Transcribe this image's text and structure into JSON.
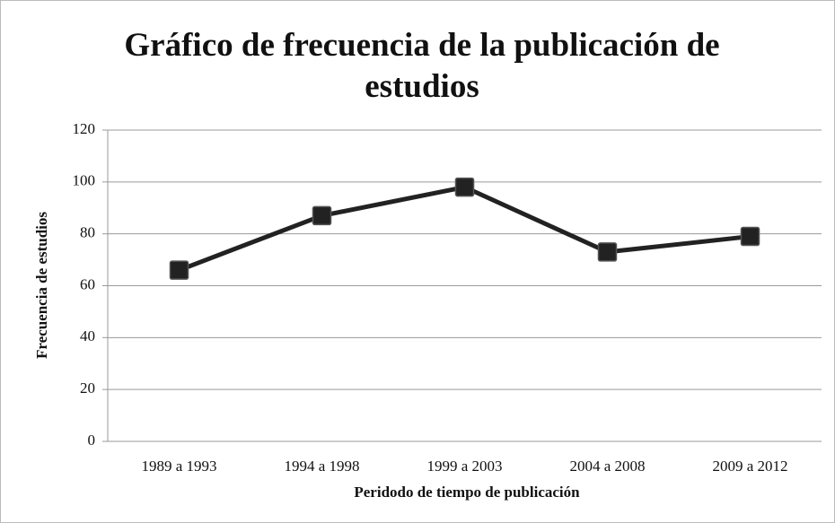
{
  "chart_data": {
    "type": "line",
    "title": "Gráfico de frecuencia de la publicación de estudios",
    "x_label": "Peridodo de tiempo de publicación",
    "y_label": "Frecuencia de estudios",
    "categories": [
      "1989 a 1993",
      "1994 a 1998",
      "1999 a 2003",
      "2004 a 2008",
      "2009 a 2012"
    ],
    "values": [
      66,
      87,
      98,
      73,
      79
    ],
    "color": "#222222",
    "ylim": [
      0,
      120
    ],
    "yticks": [
      0,
      20,
      40,
      60,
      80,
      100,
      120
    ],
    "grid": true
  }
}
